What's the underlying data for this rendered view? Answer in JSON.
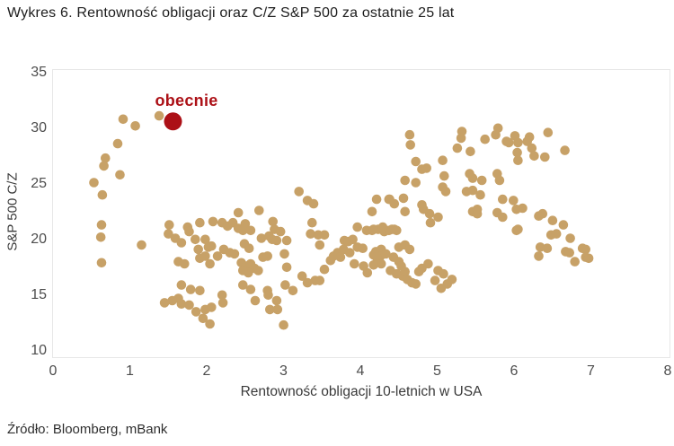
{
  "title": "Wykres 6. Rentowność obligacji oraz C/Z S&P 500 za ostatnie 25 lat",
  "source": "Źródło: Bloomberg, mBank",
  "colors": {
    "scatter": "#C7A167",
    "highlight": "#AC1016",
    "plot_border": "#e7e7e7"
  },
  "chart_data": {
    "type": "scatter",
    "title": "Wykres 6. Rentowność obligacji oraz C/Z S&P 500 za ostatnie 25 lat",
    "xlabel": "Rentowność obligacji 10-letnich w USA",
    "ylabel": "S&P 500 C/Z",
    "xlim": [
      0,
      8
    ],
    "ylim": [
      10,
      35
    ],
    "xticks": [
      0,
      1,
      2,
      3,
      4,
      5,
      6,
      7,
      8
    ],
    "yticks": [
      10,
      15,
      20,
      25,
      30,
      35
    ],
    "grid": false,
    "legend": "none",
    "annotation": {
      "text": "obecnie",
      "x": 1.55,
      "y": 32.4,
      "color": "#AC1016"
    },
    "series": [
      {
        "name": "ostatnie 25 lat",
        "color": "#C7A167",
        "marker_radius": 5.3,
        "points": [
          [
            0.9,
            30.9
          ],
          [
            1.06,
            30.3
          ],
          [
            1.37,
            31.2
          ],
          [
            0.83,
            28.7
          ],
          [
            0.67,
            27.4
          ],
          [
            0.65,
            26.7
          ],
          [
            0.86,
            25.9
          ],
          [
            0.52,
            25.2
          ],
          [
            0.63,
            24.1
          ],
          [
            0.62,
            21.4
          ],
          [
            0.61,
            20.3
          ],
          [
            1.14,
            19.6
          ],
          [
            0.62,
            18.0
          ],
          [
            1.5,
            21.4
          ],
          [
            1.74,
            21.2
          ],
          [
            1.9,
            21.6
          ],
          [
            1.49,
            20.6
          ],
          [
            1.58,
            20.2
          ],
          [
            1.66,
            19.8
          ],
          [
            1.76,
            20.8
          ],
          [
            1.84,
            20.1
          ],
          [
            1.97,
            20.1
          ],
          [
            2.01,
            19.4
          ],
          [
            1.88,
            19.2
          ],
          [
            1.62,
            18.1
          ],
          [
            1.7,
            17.9
          ],
          [
            1.9,
            18.4
          ],
          [
            1.97,
            18.6
          ],
          [
            2.03,
            17.9
          ],
          [
            1.66,
            16.0
          ],
          [
            1.78,
            15.6
          ],
          [
            1.9,
            15.5
          ],
          [
            1.62,
            14.8
          ],
          [
            1.54,
            14.6
          ],
          [
            1.44,
            14.4
          ],
          [
            1.66,
            14.3
          ],
          [
            1.76,
            14.2
          ],
          [
            1.85,
            13.6
          ],
          [
            1.97,
            13.8
          ],
          [
            1.94,
            13.0
          ],
          [
            2.03,
            12.5
          ],
          [
            2.4,
            22.5
          ],
          [
            2.67,
            22.7
          ],
          [
            3.19,
            24.4
          ],
          [
            3.3,
            23.6
          ],
          [
            3.38,
            23.3
          ],
          [
            2.07,
            21.7
          ],
          [
            2.19,
            21.6
          ],
          [
            2.26,
            21.3
          ],
          [
            2.33,
            21.6
          ],
          [
            2.4,
            21.1
          ],
          [
            2.46,
            20.9
          ],
          [
            2.49,
            21.5
          ],
          [
            2.56,
            20.9
          ],
          [
            2.85,
            21.7
          ],
          [
            2.87,
            21.0
          ],
          [
            2.95,
            20.8
          ],
          [
            3.03,
            20.0
          ],
          [
            3.36,
            21.6
          ],
          [
            3.34,
            20.6
          ],
          [
            3.44,
            20.5
          ],
          [
            3.52,
            20.5
          ],
          [
            3.46,
            19.6
          ],
          [
            2.48,
            19.7
          ],
          [
            2.54,
            19.3
          ],
          [
            2.21,
            19.2
          ],
          [
            2.05,
            19.5
          ],
          [
            2.13,
            18.6
          ],
          [
            2.29,
            18.9
          ],
          [
            2.35,
            18.8
          ],
          [
            2.7,
            20.2
          ],
          [
            2.8,
            20.4
          ],
          [
            2.84,
            20.1
          ],
          [
            2.9,
            20.0
          ],
          [
            2.72,
            18.5
          ],
          [
            2.78,
            18.6
          ],
          [
            3.0,
            18.8
          ],
          [
            2.44,
            18.0
          ],
          [
            2.5,
            17.7
          ],
          [
            2.56,
            17.9
          ],
          [
            2.61,
            17.5
          ],
          [
            2.66,
            17.3
          ],
          [
            2.53,
            17.1
          ],
          [
            2.46,
            17.3
          ],
          [
            3.03,
            17.6
          ],
          [
            3.23,
            16.8
          ],
          [
            3.3,
            16.2
          ],
          [
            3.4,
            16.4
          ],
          [
            3.46,
            16.4
          ],
          [
            3.01,
            16.0
          ],
          [
            3.11,
            15.5
          ],
          [
            2.46,
            16.0
          ],
          [
            2.56,
            15.6
          ],
          [
            2.62,
            14.6
          ],
          [
            2.78,
            15.5
          ],
          [
            2.79,
            15.1
          ],
          [
            2.19,
            15.1
          ],
          [
            2.2,
            14.4
          ],
          [
            2.05,
            14.0
          ],
          [
            2.9,
            14.6
          ],
          [
            2.91,
            13.8
          ],
          [
            2.81,
            13.8
          ],
          [
            2.99,
            12.4
          ],
          [
            3.52,
            17.4
          ],
          [
            3.6,
            18.2
          ],
          [
            3.64,
            18.6
          ],
          [
            3.69,
            18.9
          ],
          [
            3.73,
            18.5
          ],
          [
            3.77,
            19.2
          ],
          [
            3.85,
            18.9
          ],
          [
            3.91,
            17.9
          ],
          [
            4.03,
            17.7
          ],
          [
            4.08,
            17.1
          ],
          [
            3.78,
            20.0
          ],
          [
            3.83,
            19.9
          ],
          [
            3.89,
            20.1
          ],
          [
            3.95,
            21.2
          ],
          [
            4.07,
            20.9
          ],
          [
            4.14,
            20.9
          ],
          [
            4.22,
            21.0
          ],
          [
            4.3,
            20.8
          ],
          [
            4.36,
            20.9
          ],
          [
            4.43,
            21.0
          ],
          [
            3.95,
            19.4
          ],
          [
            4.02,
            19.3
          ],
          [
            4.19,
            19.0
          ],
          [
            4.26,
            19.2
          ],
          [
            4.2,
            23.7
          ],
          [
            4.36,
            23.7
          ],
          [
            4.43,
            23.3
          ],
          [
            4.14,
            22.6
          ],
          [
            4.57,
            22.6
          ],
          [
            4.89,
            22.4
          ],
          [
            5.0,
            22.1
          ],
          [
            4.9,
            21.6
          ],
          [
            5.45,
            22.6
          ],
          [
            5.51,
            22.4
          ],
          [
            5.77,
            22.5
          ],
          [
            5.84,
            22.1
          ],
          [
            6.04,
            21.0
          ],
          [
            4.16,
            21.0
          ],
          [
            4.28,
            21.2
          ],
          [
            4.4,
            21.0
          ],
          [
            4.46,
            20.9
          ],
          [
            4.49,
            19.4
          ],
          [
            4.57,
            19.6
          ],
          [
            4.63,
            19.2
          ],
          [
            4.32,
            18.8
          ],
          [
            4.42,
            18.5
          ],
          [
            4.25,
            18.6
          ],
          [
            4.49,
            18.1
          ],
          [
            4.52,
            17.7
          ],
          [
            4.38,
            17.3
          ],
          [
            4.46,
            17.0
          ],
          [
            4.54,
            16.8
          ],
          [
            4.6,
            16.5
          ],
          [
            4.66,
            16.2
          ],
          [
            4.71,
            16.1
          ],
          [
            4.57,
            17.2
          ],
          [
            4.75,
            17.2
          ],
          [
            4.79,
            17.5
          ],
          [
            4.87,
            17.9
          ],
          [
            5.0,
            17.3
          ],
          [
            5.07,
            17.0
          ],
          [
            4.96,
            16.4
          ],
          [
            5.04,
            15.7
          ],
          [
            5.12,
            16.1
          ],
          [
            5.18,
            16.5
          ],
          [
            4.16,
            18.7
          ],
          [
            4.2,
            18.5
          ],
          [
            4.26,
            17.9
          ],
          [
            4.16,
            17.8
          ],
          [
            4.63,
            29.5
          ],
          [
            4.64,
            28.6
          ],
          [
            5.31,
            29.8
          ],
          [
            5.3,
            29.2
          ],
          [
            5.42,
            28.0
          ],
          [
            5.25,
            28.3
          ],
          [
            5.61,
            29.1
          ],
          [
            5.78,
            30.1
          ],
          [
            5.75,
            29.5
          ],
          [
            5.89,
            28.9
          ],
          [
            5.92,
            28.8
          ],
          [
            6.0,
            29.4
          ],
          [
            6.04,
            28.8
          ],
          [
            6.19,
            29.3
          ],
          [
            6.43,
            29.7
          ],
          [
            6.16,
            28.9
          ],
          [
            6.03,
            27.9
          ],
          [
            6.22,
            28.3
          ],
          [
            6.25,
            27.6
          ],
          [
            6.39,
            27.5
          ],
          [
            6.65,
            28.1
          ],
          [
            6.04,
            27.2
          ],
          [
            4.71,
            27.1
          ],
          [
            4.79,
            26.4
          ],
          [
            4.85,
            26.5
          ],
          [
            5.06,
            27.2
          ],
          [
            5.08,
            25.8
          ],
          [
            4.57,
            25.4
          ],
          [
            4.71,
            25.2
          ],
          [
            5.41,
            26.0
          ],
          [
            5.45,
            25.6
          ],
          [
            5.57,
            25.4
          ],
          [
            5.77,
            26.0
          ],
          [
            5.8,
            25.4
          ],
          [
            5.06,
            24.8
          ],
          [
            5.1,
            24.4
          ],
          [
            5.37,
            24.4
          ],
          [
            5.45,
            24.5
          ],
          [
            5.55,
            24.1
          ],
          [
            4.55,
            23.8
          ],
          [
            4.37,
            23.7
          ],
          [
            4.79,
            23.2
          ],
          [
            4.81,
            22.8
          ],
          [
            5.51,
            22.8
          ],
          [
            5.84,
            23.7
          ],
          [
            5.98,
            23.6
          ],
          [
            6.02,
            22.8
          ],
          [
            6.1,
            22.9
          ],
          [
            6.36,
            22.4
          ],
          [
            6.31,
            22.2
          ],
          [
            6.49,
            21.8
          ],
          [
            6.02,
            20.9
          ],
          [
            6.63,
            21.4
          ],
          [
            6.47,
            20.5
          ],
          [
            6.54,
            20.6
          ],
          [
            6.72,
            20.2
          ],
          [
            6.33,
            19.4
          ],
          [
            6.42,
            19.3
          ],
          [
            6.31,
            18.6
          ],
          [
            6.66,
            19.0
          ],
          [
            6.71,
            18.9
          ],
          [
            6.88,
            19.3
          ],
          [
            6.92,
            19.2
          ],
          [
            6.78,
            18.1
          ],
          [
            6.92,
            18.5
          ],
          [
            6.96,
            18.4
          ]
        ]
      },
      {
        "name": "obecnie",
        "color": "#AC1016",
        "marker_radius": 10,
        "points": [
          [
            1.55,
            30.7
          ]
        ]
      }
    ]
  }
}
